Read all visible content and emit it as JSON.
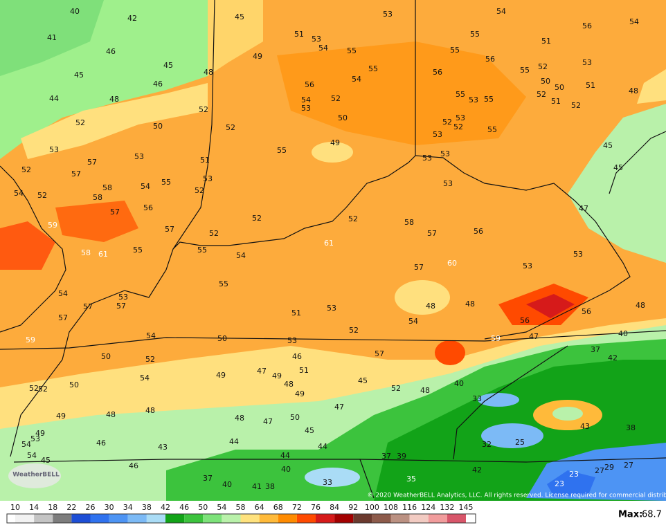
{
  "map_labels": [
    40,
    42,
    45,
    53,
    54,
    56,
    54,
    41,
    46,
    51,
    53,
    54,
    55,
    55,
    55,
    51,
    49,
    45,
    48,
    56,
    52,
    53,
    45,
    46,
    55,
    54,
    56,
    55,
    50,
    50,
    51,
    48,
    44,
    48,
    56,
    54,
    52,
    53,
    55,
    53,
    55,
    52,
    51,
    52,
    52,
    52,
    50,
    50,
    52,
    52,
    53,
    52,
    55,
    53,
    53,
    53,
    55,
    49,
    45,
    51,
    53,
    53,
    52,
    57,
    57,
    53,
    45,
    55,
    54,
    58,
    53,
    52,
    54,
    52,
    58,
    56,
    47,
    57,
    59,
    52,
    52,
    58,
    57,
    52,
    57,
    56,
    58,
    61,
    55,
    55,
    61,
    54,
    53,
    60,
    57,
    53,
    55,
    54,
    53,
    57,
    57,
    48,
    48,
    48,
    57,
    51,
    53,
    56,
    56,
    54,
    52,
    54,
    59,
    50,
    53,
    59,
    47,
    40,
    50,
    52,
    46,
    57,
    37,
    42,
    47,
    49,
    51,
    49,
    54,
    48,
    45,
    40,
    52,
    52,
    50,
    52,
    48,
    49,
    33,
    47,
    49,
    48,
    48,
    48,
    47,
    50,
    43,
    38,
    45,
    49,
    53,
    54,
    46,
    44,
    43,
    44,
    32,
    25,
    54,
    45,
    44,
    37,
    39,
    46,
    40,
    42,
    23,
    27,
    29,
    27,
    37,
    40,
    41,
    38,
    33,
    35,
    23
  ],
  "copyright": "© 2020 WeatherBELL Analytics, LLC. All rights reserved. License required for commercial distribution.",
  "logo": "WeatherBELL",
  "legend": {
    "ticks": [
      10,
      14,
      18,
      22,
      26,
      30,
      34,
      38,
      42,
      46,
      50,
      54,
      58,
      64,
      68,
      72,
      76,
      84,
      92,
      100,
      108,
      116,
      124,
      132,
      145
    ],
    "colors": [
      "#f2f2f2",
      "#c4c4c4",
      "#7d7d7d",
      "#1d4ed6",
      "#2f72ef",
      "#4d94f4",
      "#7cbaf6",
      "#aadcf6",
      "#12a318",
      "#3cc33d",
      "#7de27a",
      "#b9f1aa",
      "#ffe27e",
      "#ffba3a",
      "#ff8b00",
      "#ff4a00",
      "#d61a1a",
      "#a30000",
      "#6b3a2e",
      "#8d5b4b",
      "#bb9182",
      "#f2cbc2",
      "#f19c9c",
      "#d8566a"
    ]
  },
  "max_label": "Max:",
  "max_value": 68.7
}
